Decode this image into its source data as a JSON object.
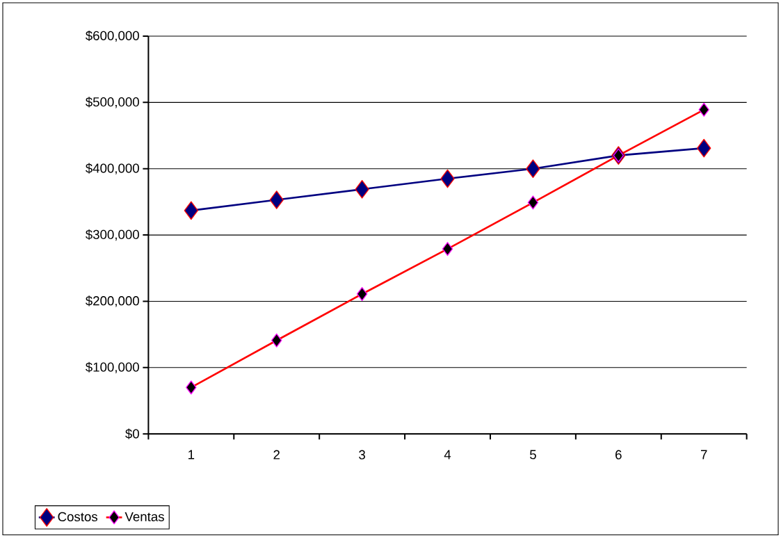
{
  "chart_data": {
    "type": "line",
    "categories": [
      "1",
      "2",
      "3",
      "4",
      "5",
      "6",
      "7"
    ],
    "series": [
      {
        "name": "Costos",
        "color": "#000080",
        "values": [
          337000,
          353000,
          369000,
          385000,
          400000,
          420000,
          431000
        ]
      },
      {
        "name": "Ventas",
        "color": "#ff0000",
        "values": [
          70000,
          141000,
          211000,
          279000,
          349000,
          420000,
          489000
        ]
      }
    ],
    "ylim": [
      0,
      600000
    ],
    "yticks": [
      {
        "value": 0,
        "label": "$0"
      },
      {
        "value": 100000,
        "label": "$100,000"
      },
      {
        "value": 200000,
        "label": "$200,000"
      },
      {
        "value": 300000,
        "label": "$300,000"
      },
      {
        "value": 400000,
        "label": "$400,000"
      },
      {
        "value": 500000,
        "label": "$500,000"
      },
      {
        "value": 600000,
        "label": "$600,000"
      }
    ],
    "grid": "y",
    "legend": "bottom left",
    "marker": "diamond",
    "line_style": "solid"
  }
}
